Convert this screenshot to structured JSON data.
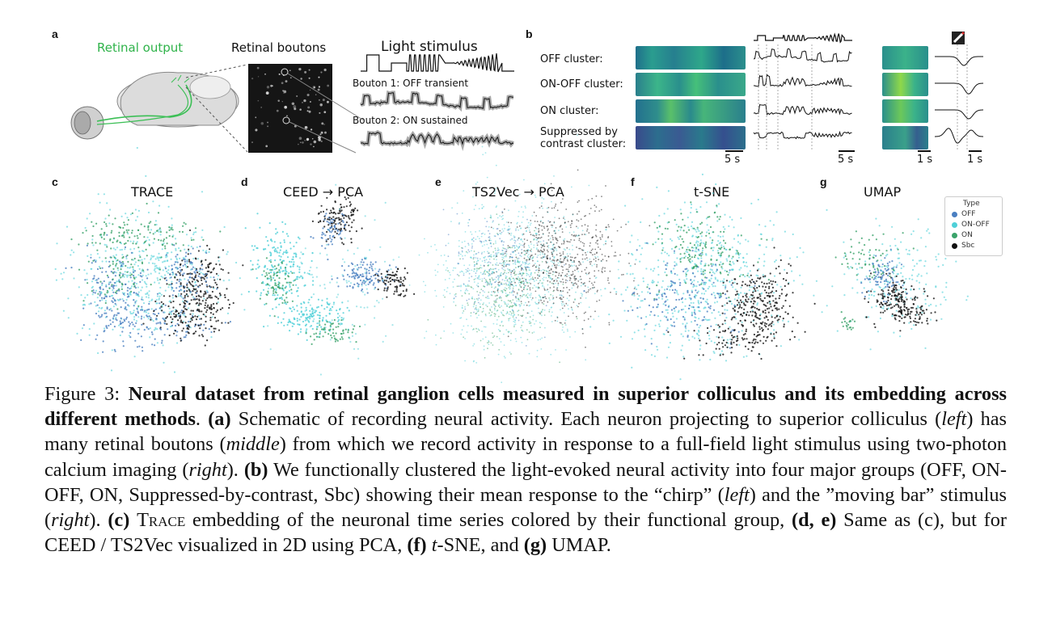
{
  "panel_a": {
    "label": "a",
    "retinal_output": "Retinal output",
    "retinal_boutons": "Retinal boutons",
    "light_stimulus": "Light stimulus",
    "bouton1": "Bouton 1: OFF transient",
    "bouton2": "Bouton 2: ON sustained"
  },
  "panel_b": {
    "label": "b",
    "clusters": [
      "OFF cluster:",
      "ON-OFF cluster:",
      "ON cluster:",
      "Suppressed by",
      "contrast cluster:"
    ],
    "scale_5s_a": "5 s",
    "scale_5s_b": "5 s",
    "scale_1s_a": "1 s",
    "scale_1s_b": "1 s"
  },
  "embeddings": [
    {
      "label": "c",
      "title": "TRACE"
    },
    {
      "label": "d",
      "title": "CEED  → PCA"
    },
    {
      "label": "e",
      "title": "TS2Vec  → PCA"
    },
    {
      "label": "f",
      "title": "t-SNE"
    },
    {
      "label": "g",
      "title": "UMAP"
    }
  ],
  "legend": {
    "title": "Type",
    "items": [
      {
        "name": "OFF",
        "color": "#4a7fc1"
      },
      {
        "name": "ON-OFF",
        "color": "#4fd0d8"
      },
      {
        "name": "ON",
        "color": "#3aa36a"
      },
      {
        "name": "Sbc",
        "color": "#111111"
      }
    ]
  },
  "caption": {
    "prefix": "Figure 3: ",
    "bold_title": "Neural dataset from retinal ganglion cells measured in superior colliculus and its embedding across different methods",
    "after_title": ". ",
    "a_label": "(a)",
    "a_text1": " Schematic of recording neural activity. Each neuron projecting to superior colliculus (",
    "a_left": "left",
    "a_text2": ") has many retinal boutons (",
    "a_middle": "middle",
    "a_text3": ") from which we record activity in response to a full-field light stimulus using two-photon calcium imaging (",
    "a_right": "right",
    "a_text4": "). ",
    "b_label": "(b)",
    "b_text1": " We functionally clustered the light-evoked neural activity into four major groups (OFF, ON-OFF, ON, Suppressed-by-contrast, Sbc) showing their mean response to the “chirp” (",
    "b_left": "left",
    "b_text2": ") and the ”moving bar” stimulus (",
    "b_right": "right",
    "b_text3": "). ",
    "c_label": "(c)",
    "c_text1": " ",
    "c_trace": "Trace",
    "c_text2": " embedding of the neuronal time series colored by their functional group, ",
    "de_label": "(d, e)",
    "de_text": " Same as (c), but for CEED / TS2Vec visualized in 2D using PCA, ",
    "f_label": "(f)",
    "f_tsne": "t",
    "f_text": "-SNE, and ",
    "g_label": "(g)",
    "g_text": " UMAP."
  }
}
